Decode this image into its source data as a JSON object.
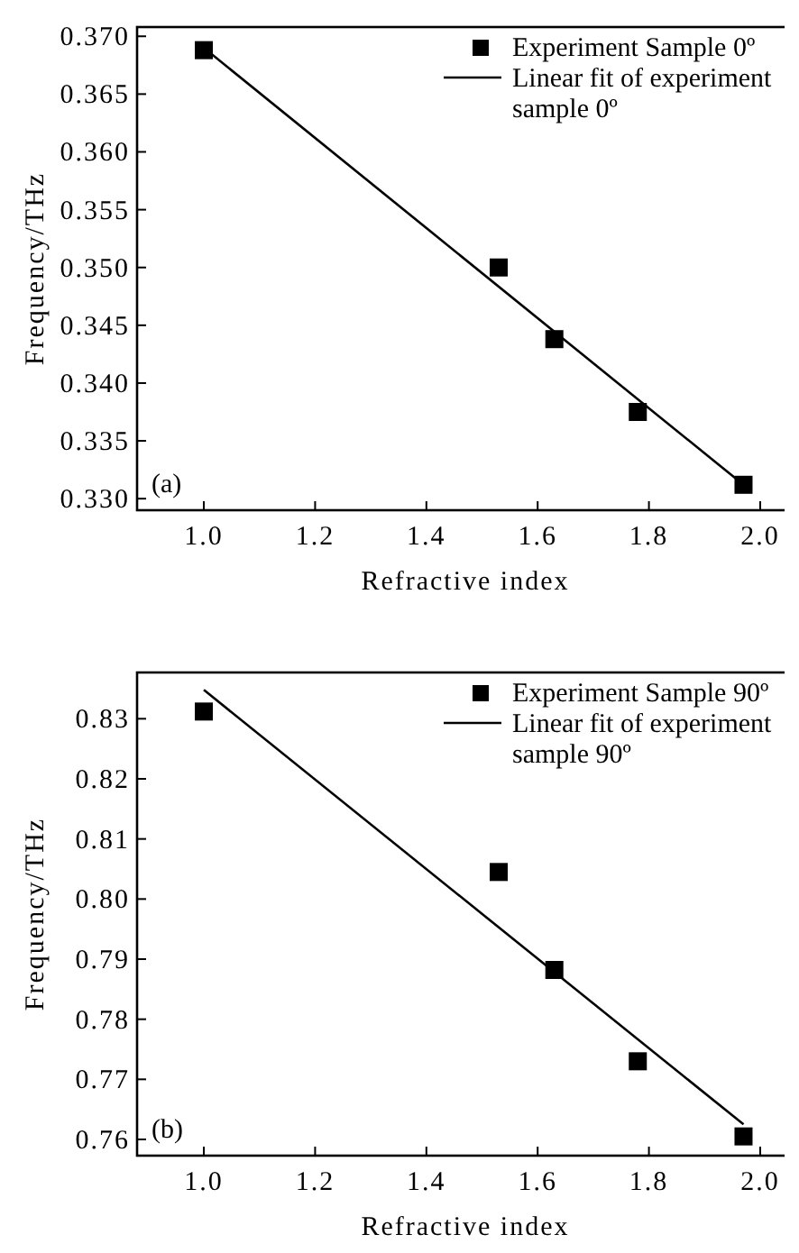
{
  "chart_data": [
    {
      "type": "scatter",
      "xlabel": "Refractive index",
      "ylabel": "Frequency/THz",
      "annotations": [
        "(a)"
      ],
      "xlim": [
        0.88,
        2.06
      ],
      "xticks": [
        {
          "value": 1,
          "label": "1.0"
        },
        {
          "value": 1.2,
          "label": "1.2"
        },
        {
          "value": 1.4,
          "label": "1.4"
        },
        {
          "value": 1.6,
          "label": "1.6"
        },
        {
          "value": 1.8,
          "label": "1.8"
        },
        {
          "value": 2,
          "label": "2.0"
        }
      ],
      "ylim": [
        0.329,
        0.3708
      ],
      "yticks": [
        {
          "value": 0.33,
          "label": "0.330"
        },
        {
          "value": 0.335,
          "label": "0.335"
        },
        {
          "value": 0.34,
          "label": "0.340"
        },
        {
          "value": 0.345,
          "label": "0.345"
        },
        {
          "value": 0.35,
          "label": "0.350"
        },
        {
          "value": 0.355,
          "label": "0.355"
        },
        {
          "value": 0.36,
          "label": "0.360"
        },
        {
          "value": 0.365,
          "label": "0.365"
        },
        {
          "value": 0.37,
          "label": "0.370"
        }
      ],
      "legend": "top right",
      "grid": false,
      "series": [
        {
          "name": "Experiment Sample 0º",
          "color": "#000000",
          "marker": "square",
          "x": [
            1.0,
            1.53,
            1.63,
            1.78,
            1.97
          ],
          "values": [
            0.3688,
            0.35,
            0.3438,
            0.3375,
            0.3312
          ]
        },
        {
          "type": "line",
          "name": "Linear fit of experiment sample 0º",
          "color": "#000000",
          "line_style": "solid",
          "x": [
            1.0,
            1.97
          ],
          "values": [
            0.369,
            0.3312
          ]
        }
      ]
    },
    {
      "type": "scatter",
      "xlabel": "Refractive index",
      "ylabel": "Frequency/THz",
      "annotations": [
        "(b)"
      ],
      "xlim": [
        0.88,
        2.06
      ],
      "xticks": [
        {
          "value": 1,
          "label": "1.0"
        },
        {
          "value": 1.2,
          "label": "1.2"
        },
        {
          "value": 1.4,
          "label": "1.4"
        },
        {
          "value": 1.6,
          "label": "1.6"
        },
        {
          "value": 1.8,
          "label": "1.8"
        },
        {
          "value": 2,
          "label": "2.0"
        }
      ],
      "ylim": [
        0.7573,
        0.8377
      ],
      "yticks": [
        {
          "value": 0.76,
          "label": "0.76"
        },
        {
          "value": 0.77,
          "label": "0.77"
        },
        {
          "value": 0.78,
          "label": "0.78"
        },
        {
          "value": 0.79,
          "label": "0.79"
        },
        {
          "value": 0.8,
          "label": "0.80"
        },
        {
          "value": 0.81,
          "label": "0.81"
        },
        {
          "value": 0.82,
          "label": "0.82"
        },
        {
          "value": 0.83,
          "label": "0.83"
        }
      ],
      "legend": "top right",
      "grid": false,
      "series": [
        {
          "name": "Experiment Sample 90º",
          "color": "#000000",
          "marker": "square",
          "x": [
            1.0,
            1.53,
            1.63,
            1.78,
            1.97
          ],
          "values": [
            0.8312,
            0.8045,
            0.7882,
            0.773,
            0.7605
          ]
        },
        {
          "type": "line",
          "name": "Linear fit of experiment sample 90º",
          "color": "#000000",
          "line_style": "solid",
          "x": [
            1.0,
            1.97
          ],
          "values": [
            0.8348,
            0.7625
          ]
        }
      ]
    }
  ]
}
